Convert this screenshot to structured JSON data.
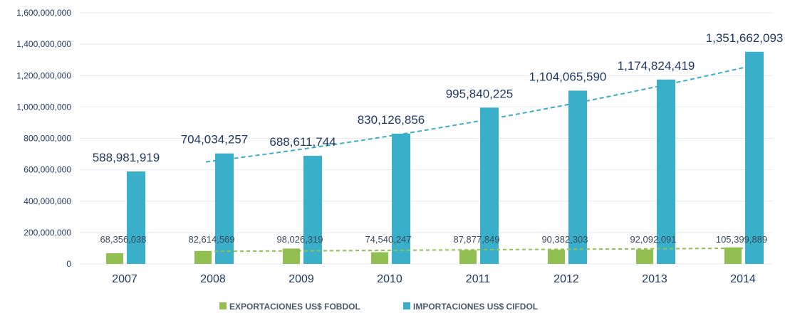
{
  "colors": {
    "exports": "#92c050",
    "imports": "#3aafc9",
    "exports_trend": "#92c050",
    "imports_trend": "#3aafc9"
  },
  "chart_data": {
    "type": "bar",
    "categories": [
      "2007",
      "2008",
      "2009",
      "2010",
      "2011",
      "2012",
      "2013",
      "2014"
    ],
    "series": [
      {
        "name": "EXPORTACIONES US$ FOBDOL",
        "values": [
          68356038,
          82614569,
          98026319,
          74540247,
          87877849,
          90382303,
          92092091,
          105399889
        ],
        "labels": [
          "68,356,038",
          "82,614,569",
          "98,026,319",
          "74,540,247",
          "87,877,849",
          "90,382,303",
          "92,092,091",
          "105,399,889"
        ]
      },
      {
        "name": "IMPORTACIONES US$ CIFDOL",
        "values": [
          588981919,
          704034257,
          688611744,
          830126856,
          995840225,
          1104065590,
          1174824419,
          1351662093
        ],
        "labels": [
          "588,981,919",
          "704,034,257",
          "688,611,744",
          "830,126,856",
          "995,840,225",
          "1,104,065,590",
          "1,174,824,419",
          "1,351,662,093"
        ]
      }
    ],
    "trendlines": [
      {
        "series": "EXPORTACIONES US$ FOBDOL",
        "style": "dashed",
        "from_category": "2008",
        "to_category": "2014",
        "values": [
          80000000,
          100000000
        ]
      },
      {
        "series": "IMPORTACIONES US$ CIFDOL",
        "style": "dashed",
        "from_category": "2008",
        "to_category": "2014",
        "values": [
          650000000,
          1255000000
        ]
      }
    ],
    "yticks": [
      "0",
      "200,000,000",
      "400,000,000",
      "600,000,000",
      "800,000,000",
      "1,000,000,000",
      "1,200,000,000",
      "1,400,000,000",
      "1,600,000,000"
    ],
    "ylim": [
      0,
      1600000000
    ],
    "title": "",
    "xlabel": "",
    "ylabel": "",
    "grid": true,
    "legend_position": "bottom-center"
  }
}
